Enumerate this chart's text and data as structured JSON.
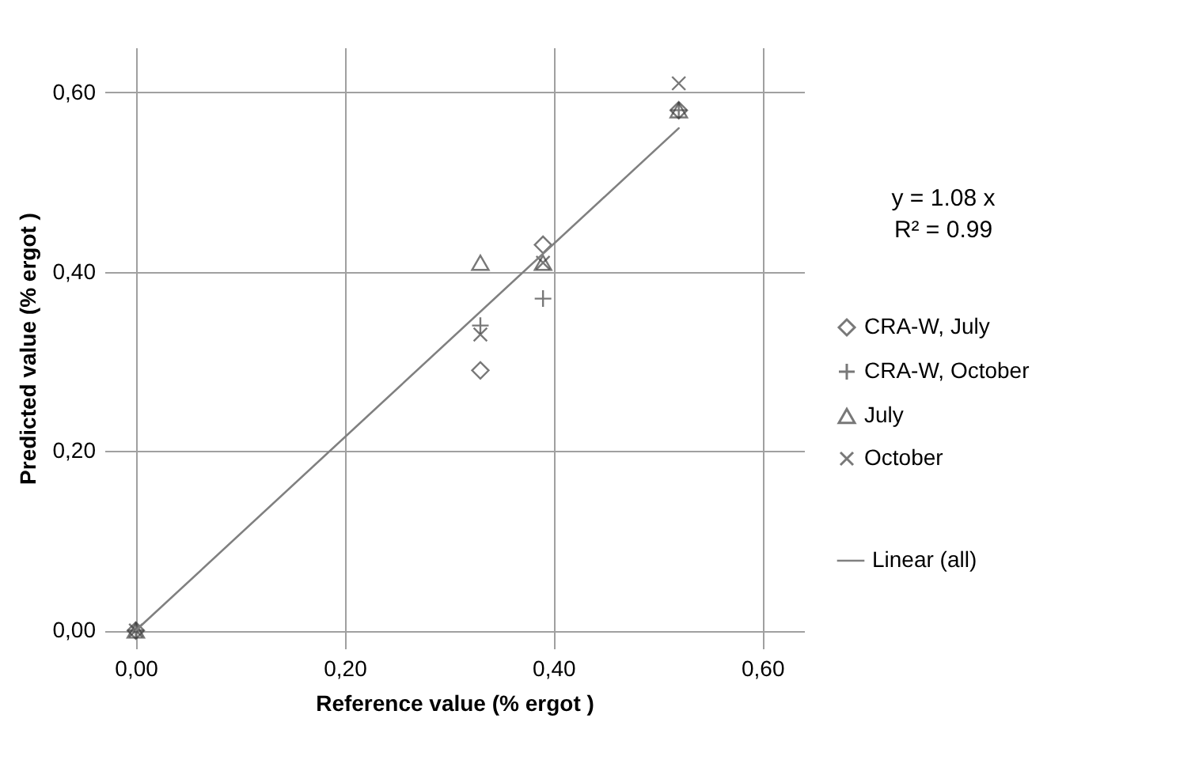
{
  "chart_data": {
    "type": "scatter",
    "xlabel": "Reference value (% ergot )",
    "ylabel": "Predicted value (% ergot )",
    "xlim": [
      -0.03,
      0.64
    ],
    "ylim": [
      -0.02,
      0.65
    ],
    "xticks": [
      {
        "value": 0,
        "label": "0,00"
      },
      {
        "value": 0.2,
        "label": "0,20"
      },
      {
        "value": 0.4,
        "label": "0,40"
      },
      {
        "value": 0.6,
        "label": "0,60"
      }
    ],
    "yticks": [
      {
        "value": 0,
        "label": "0,00"
      },
      {
        "value": 0.2,
        "label": "0,20"
      },
      {
        "value": 0.4,
        "label": "0,40"
      },
      {
        "value": 0.6,
        "label": "0,60"
      }
    ],
    "grid": true,
    "legend": "right",
    "x": [
      0,
      0.33,
      0.39,
      0.52
    ],
    "series": [
      {
        "name": "CRA-W, July",
        "color": "#404040",
        "marker": "diamond",
        "values": [
          0,
          0.29,
          0.43,
          0.58
        ]
      },
      {
        "name": "CRA-W, October",
        "color": "#404040",
        "marker": "cross",
        "values": [
          0,
          0.34,
          0.37,
          0.58
        ]
      },
      {
        "name": "July",
        "color": "#404040",
        "marker": "triangle",
        "values": [
          0,
          0.41,
          0.41,
          0.58
        ]
      },
      {
        "name": "October",
        "color": "#404040",
        "marker": "x",
        "values": [
          0,
          0.33,
          0.41,
          0.61
        ]
      },
      {
        "name": "Linear (all)",
        "type": "line",
        "color": "#808080",
        "marker": "none",
        "x": [
          0,
          0.52
        ],
        "values": [
          0,
          0.56
        ]
      }
    ],
    "annotations": [
      "y = 1.08 x",
      "R² = 0.99"
    ]
  }
}
